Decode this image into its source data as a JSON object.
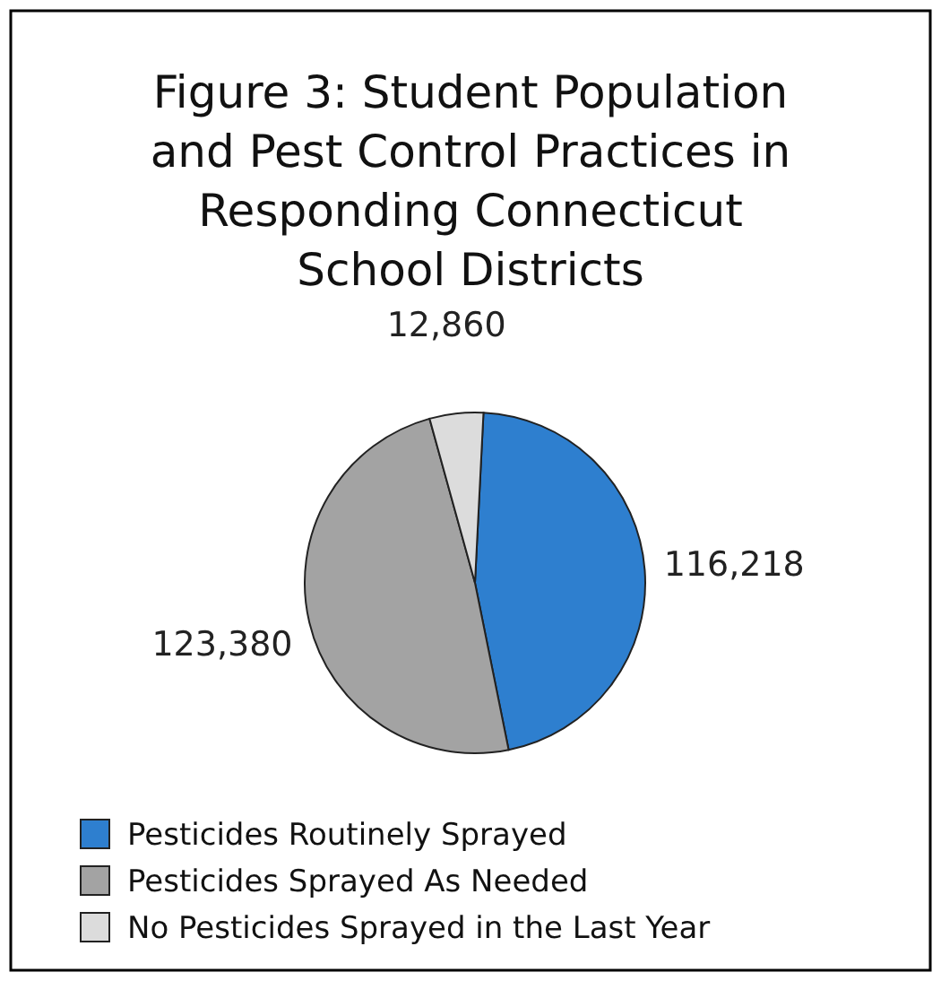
{
  "chart_data": {
    "type": "pie",
    "title": "Figure 3: Student Population and Pest Control Practices in Responding Connecticut School Districts",
    "categories": [
      "Pesticides Routinely Sprayed",
      "Pesticides Sprayed As Needed",
      "No Pesticides Sprayed in the Last Year"
    ],
    "values": [
      116218,
      123380,
      12860
    ],
    "colors": [
      "#2e7fcf",
      "#a3a3a3",
      "#dcdcdc"
    ],
    "value_labels": [
      "116,218",
      "123,380",
      "12,860"
    ],
    "legend": "bottom"
  }
}
